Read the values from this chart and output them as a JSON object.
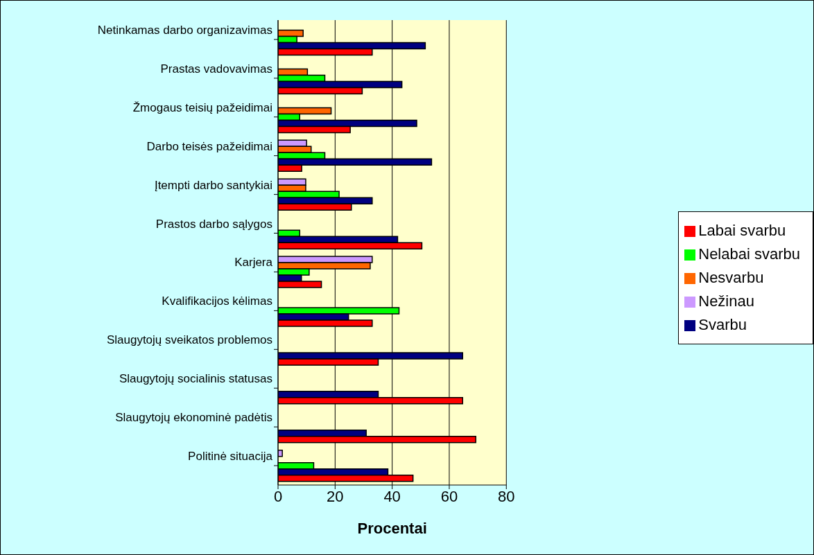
{
  "chart_data": {
    "type": "bar",
    "orientation": "horizontal",
    "xlabel": "Procentai",
    "categories": [
      "Netinkamas darbo organizavimas",
      "Prastas vadovavimas",
      "Žmogaus teisių pažeidimai",
      "Darbo teisės pažeidimai",
      "Įtempti darbo santykiai",
      "Prastos darbo sąlygos",
      "Karjera",
      "Kvalifikacijos kėlimas",
      "Slaugytojų sveikatos problemos",
      "Slaugytojų socialinis statusas",
      "Slaugytojų ekonominė padėtis",
      "Politinė situacija"
    ],
    "series": [
      {
        "name": "Nežinau",
        "color": "#cc99ff",
        "values": [
          null,
          null,
          null,
          10.0,
          9.7,
          null,
          33.0,
          null,
          null,
          null,
          null,
          1.5
        ]
      },
      {
        "name": "Nesvarbu",
        "color": "#ff6600",
        "values": [
          8.8,
          10.3,
          18.6,
          11.6,
          9.7,
          null,
          32.3,
          null,
          null,
          null,
          null,
          null
        ]
      },
      {
        "name": "Nelabai svarbu",
        "color": "#00ff00",
        "values": [
          6.6,
          16.4,
          7.6,
          16.4,
          21.4,
          7.6,
          10.9,
          42.4,
          null,
          null,
          null,
          12.5
        ]
      },
      {
        "name": "Svarbu",
        "color": "#000080",
        "values": [
          51.6,
          43.4,
          48.6,
          53.8,
          33.0,
          41.9,
          8.2,
          24.7,
          64.7,
          35.1,
          30.9,
          38.5
        ]
      },
      {
        "name": "Labai svarbu",
        "color": "#ff0000",
        "values": [
          33.0,
          29.5,
          25.3,
          8.3,
          25.7,
          50.4,
          15.2,
          33.0,
          35.1,
          64.7,
          69.3,
          47.3
        ]
      }
    ],
    "xlim": [
      0,
      80
    ],
    "xticks": [
      0,
      20,
      40,
      60,
      80
    ],
    "grid": "x",
    "legend": "right"
  }
}
